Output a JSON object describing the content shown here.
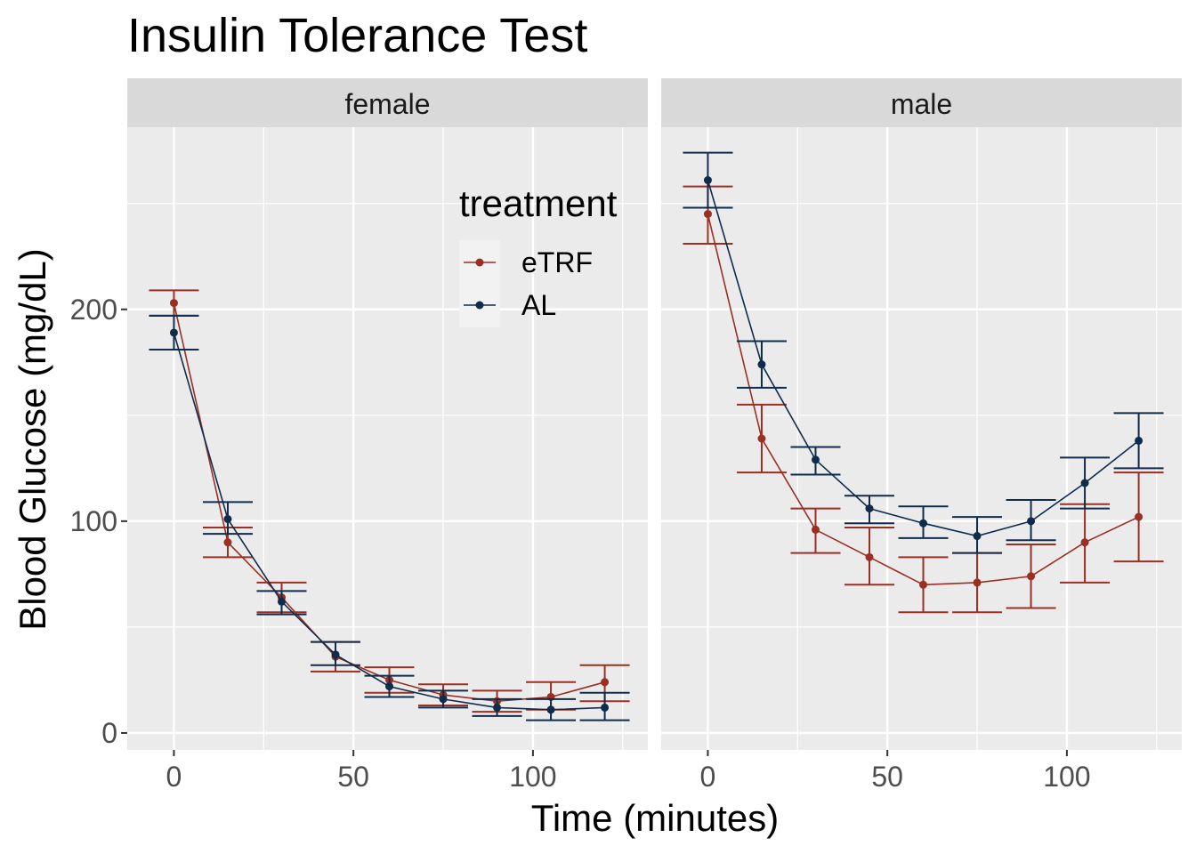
{
  "chart_data": {
    "type": "line",
    "title": "Insulin Tolerance Test",
    "xlabel": "Time (minutes)",
    "ylabel": "Blood Glucose (mg/dL)",
    "xlim": [
      -13,
      132
    ],
    "ylim": [
      -8,
      286
    ],
    "x_ticks": [
      0,
      50,
      100
    ],
    "x_minor_ticks": [
      25,
      75,
      125
    ],
    "y_ticks": [
      0,
      100,
      200
    ],
    "y_minor_ticks": [
      50,
      150,
      250
    ],
    "grid": true,
    "legend": {
      "title": "treatment",
      "position": "top-right of left panel",
      "entries": [
        "eTRF",
        "AL"
      ]
    },
    "colors": {
      "eTRF": "#9c2f23",
      "AL": "#0f2c4d"
    },
    "facets": [
      {
        "label": "female",
        "series": [
          {
            "name": "eTRF",
            "x": [
              0,
              15,
              30,
              45,
              60,
              75,
              90,
              105,
              120
            ],
            "y": [
              203,
              90,
              64,
              36,
              25,
              18,
              15,
              17,
              24
            ],
            "ymin": [
              197,
              83,
              57,
              29,
              19,
              13,
              10,
              11,
              15
            ],
            "ymax": [
              209,
              97,
              71,
              43,
              31,
              23,
              20,
              24,
              32
            ]
          },
          {
            "name": "AL",
            "x": [
              0,
              15,
              30,
              45,
              60,
              75,
              90,
              105,
              120
            ],
            "y": [
              189,
              101,
              62,
              37,
              22,
              16,
              12,
              11,
              12
            ],
            "ymin": [
              181,
              94,
              56,
              32,
              17,
              12,
              8,
              6,
              6
            ],
            "ymax": [
              197,
              109,
              67,
              43,
              27,
              20,
              16,
              16,
              19
            ]
          }
        ]
      },
      {
        "label": "male",
        "series": [
          {
            "name": "eTRF",
            "x": [
              0,
              15,
              30,
              45,
              60,
              75,
              90,
              105,
              120
            ],
            "y": [
              245,
              139,
              96,
              83,
              70,
              71,
              74,
              90,
              102
            ],
            "ymin": [
              231,
              123,
              85,
              70,
              57,
              57,
              59,
              71,
              81
            ],
            "ymax": [
              258,
              155,
              106,
              97,
              83,
              85,
              89,
              108,
              123
            ]
          },
          {
            "name": "AL",
            "x": [
              0,
              15,
              30,
              45,
              60,
              75,
              90,
              105,
              120
            ],
            "y": [
              261,
              174,
              129,
              106,
              99,
              93,
              100,
              118,
              138
            ],
            "ymin": [
              248,
              163,
              122,
              99,
              92,
              85,
              91,
              106,
              125
            ],
            "ymax": [
              274,
              185,
              135,
              112,
              107,
              102,
              110,
              130,
              151
            ]
          }
        ]
      }
    ]
  }
}
